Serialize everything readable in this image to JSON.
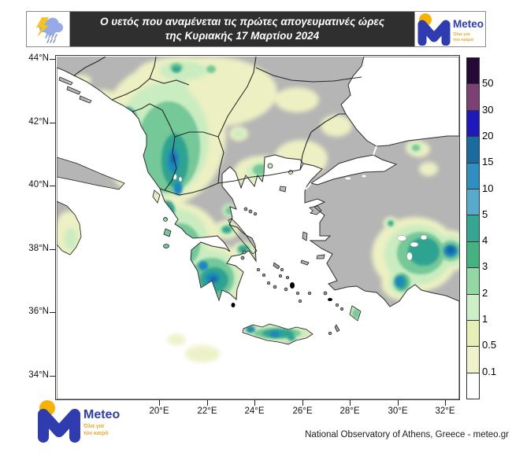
{
  "header": {
    "title_line1": "Ο υετός που αναμένεται τις πρώτες απογευματινές ώρες",
    "title_line2": "της Κυριακής 17 Μαρτίου 2024"
  },
  "logo": {
    "name": "Meteo",
    "tagline_line1": "Όλα για",
    "tagline_line2": "τον καιρό"
  },
  "map": {
    "lat_labels": [
      "44°N",
      "42°N",
      "40°N",
      "38°N",
      "36°N",
      "34°N"
    ],
    "lon_labels": [
      "20°E",
      "22°E",
      "24°E",
      "26°E",
      "28°E",
      "30°E",
      "32°E"
    ]
  },
  "colorbar": {
    "labels": [
      "50",
      "30",
      "20",
      "15",
      "10",
      "5",
      "4",
      "3",
      "2",
      "1",
      "0.5",
      "0.1"
    ],
    "segment_colors": [
      "#250a38",
      "#7b4173",
      "#1f19bb",
      "#1a6b9e",
      "#2e8fc0",
      "#56aacb",
      "#36a692",
      "#47b281",
      "#93d8a4",
      "#cdeec6",
      "#e7efb6",
      "#f0f2ca",
      "#ffffff"
    ]
  },
  "footer": {
    "attribution": "National Observatory of Athens, Greece - meteo.gr"
  },
  "palette": {
    "land": "#b5b5b5",
    "sea": "#ffffff",
    "p-yellow": "#ecf0c2",
    "p-lgreen": "#c9ecc0",
    "p-green": "#74c897",
    "p-teal": "#2fa392",
    "p-blue": "#1f86c0",
    "p-dark": "#15639c",
    "logo-blue": "#2e3cb0",
    "logo-yellow": "#f8b300",
    "tagline-orange": "#eda92d"
  }
}
